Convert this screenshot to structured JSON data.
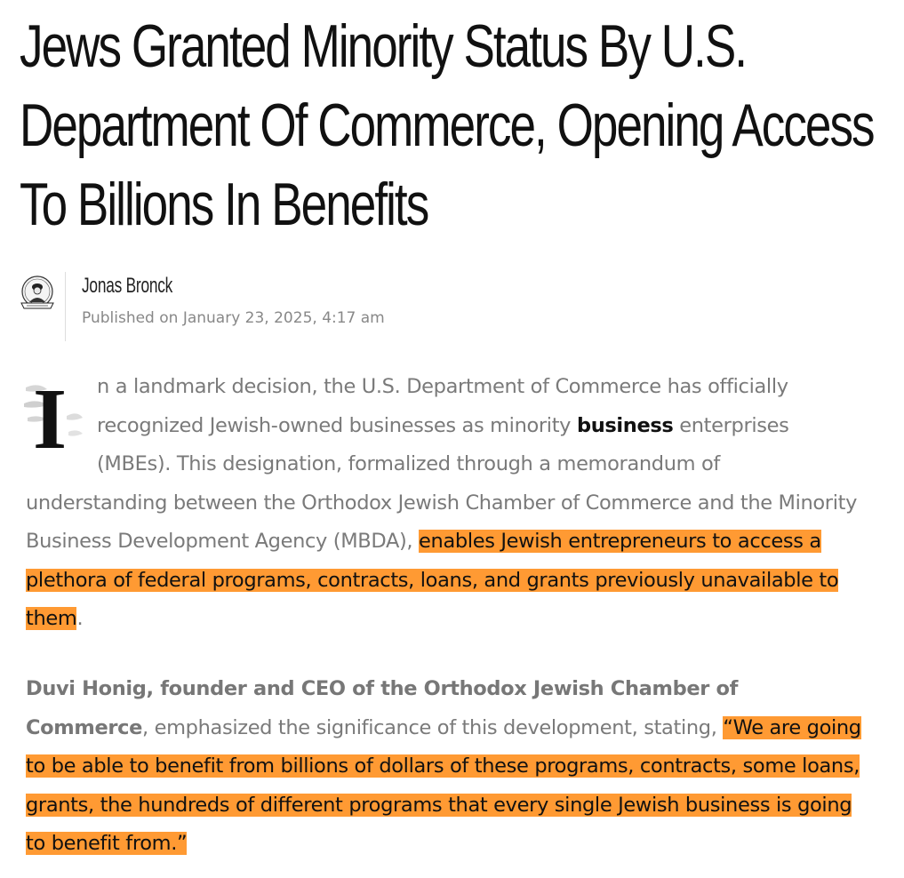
{
  "article": {
    "title": "Jews Granted Minority Status By U.S. Department Of Commerce, Opening Access To Billions In Benefits",
    "author": {
      "name": "Jonas Bronck",
      "avatar_icon": "portrait-seal-icon",
      "published": "Published on January 23, 2025, 4:17 am"
    },
    "highlight_color": "#ff9a33",
    "paragraph1": {
      "dropcap": "I",
      "text_a": "n a landmark decision, the U.S. Department of Commerce has officially recognized Jewish-owned businesses as minority ",
      "bold": "business",
      "text_b": " enterprises (MBEs). This designation, formalized through a memorandum of understanding between the Orthodox Jewish Chamber of Commerce and the Minority Business Development Agency (MBDA), ",
      "highlight": "enables Jewish entrepreneurs to access a plethora of federal programs, contracts, loans, and grants previously unavailable to them",
      "end": "."
    },
    "paragraph2": {
      "bold": "Duvi Honig, founder and CEO of the Orthodox Jewish Chamber of Commerce",
      "text": ", emphasized the significance of this development, stating, ",
      "highlight": "“We are going to be able to benefit from billions of dollars of these programs, contracts, some loans, grants, the hundreds of different programs that every single Jewish business is going to benefit from.”"
    }
  }
}
